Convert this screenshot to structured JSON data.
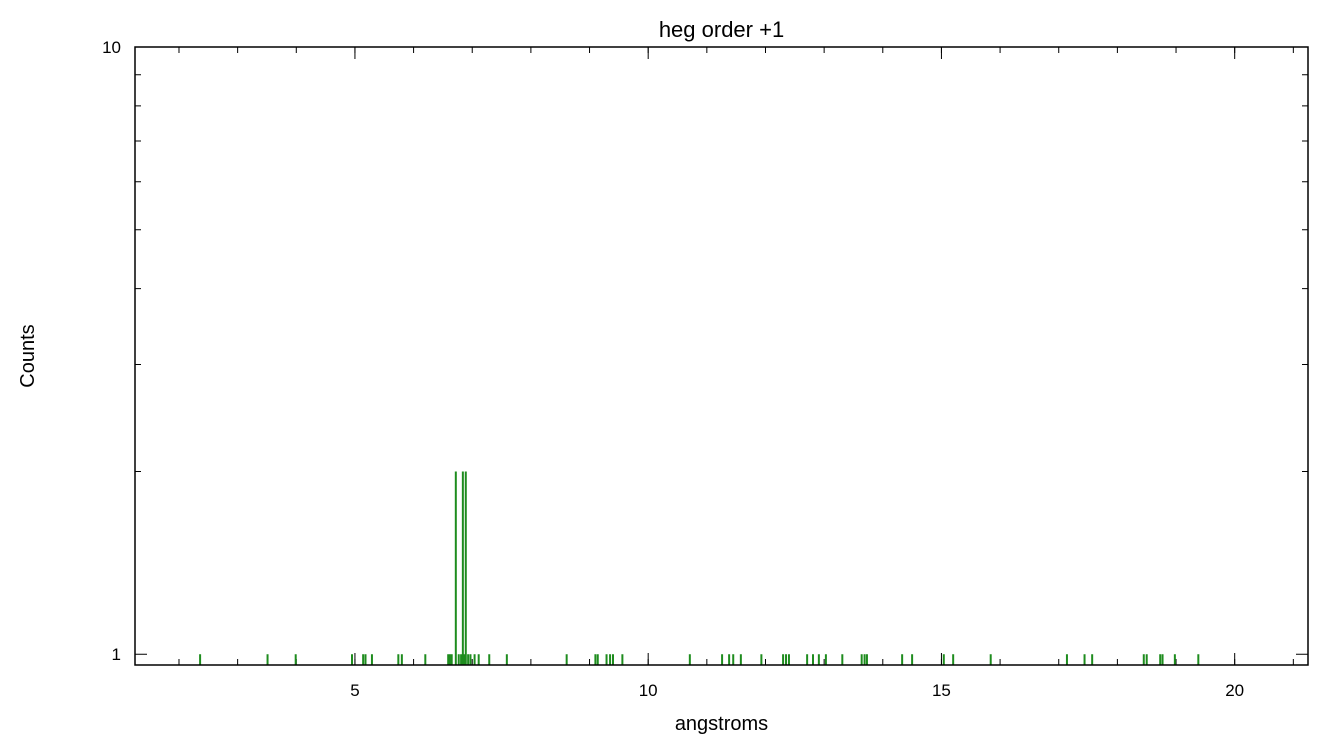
{
  "chart_data": {
    "type": "bar",
    "title": "heg order +1",
    "xlabel": "angstroms",
    "ylabel": "Counts",
    "xlim": [
      1.25,
      21.25
    ],
    "ylim": [
      0.96,
      10
    ],
    "yscale": "log",
    "xticks": [
      {
        "value": 5,
        "label": "5"
      },
      {
        "value": 10,
        "label": "10"
      },
      {
        "value": 15,
        "label": "15"
      },
      {
        "value": 20,
        "label": "20"
      }
    ],
    "yticks": [
      {
        "value": 1,
        "label": "1"
      },
      {
        "value": 10,
        "label": "10"
      }
    ],
    "grid": false,
    "color": "#1e8c1e",
    "series": [
      {
        "x": [
          2.36,
          3.51,
          3.99,
          4.95,
          5.14,
          5.18,
          5.29,
          5.74,
          5.8,
          6.2,
          6.59,
          6.62,
          6.65,
          6.72,
          6.77,
          6.81,
          6.84,
          6.86,
          6.89,
          6.93,
          6.97,
          7.04,
          7.11,
          7.29,
          7.59,
          8.61,
          9.1,
          9.14,
          9.29,
          9.35,
          9.4,
          9.56,
          10.71,
          11.26,
          11.38,
          11.45,
          11.58,
          11.93,
          12.3,
          12.35,
          12.4,
          12.71,
          12.81,
          12.91,
          13.03,
          13.31,
          13.64,
          13.69,
          13.73,
          14.33,
          14.5,
          15.04,
          15.2,
          15.84,
          17.14,
          17.44,
          17.57,
          18.45,
          18.5,
          18.73,
          18.77,
          18.98,
          19.38
        ],
        "y": [
          1,
          1,
          1,
          1,
          1,
          1,
          1,
          1,
          1,
          1,
          1,
          1,
          1,
          2,
          1,
          1,
          2,
          1,
          2,
          1,
          1,
          1,
          1,
          1,
          1,
          1,
          1,
          1,
          1,
          1,
          1,
          1,
          1,
          1,
          1,
          1,
          1,
          1,
          1,
          1,
          1,
          1,
          1,
          1,
          1,
          1,
          1,
          1,
          1,
          1,
          1,
          1,
          1,
          1,
          1,
          1,
          1,
          1,
          1,
          1,
          1,
          1,
          1
        ]
      }
    ]
  }
}
